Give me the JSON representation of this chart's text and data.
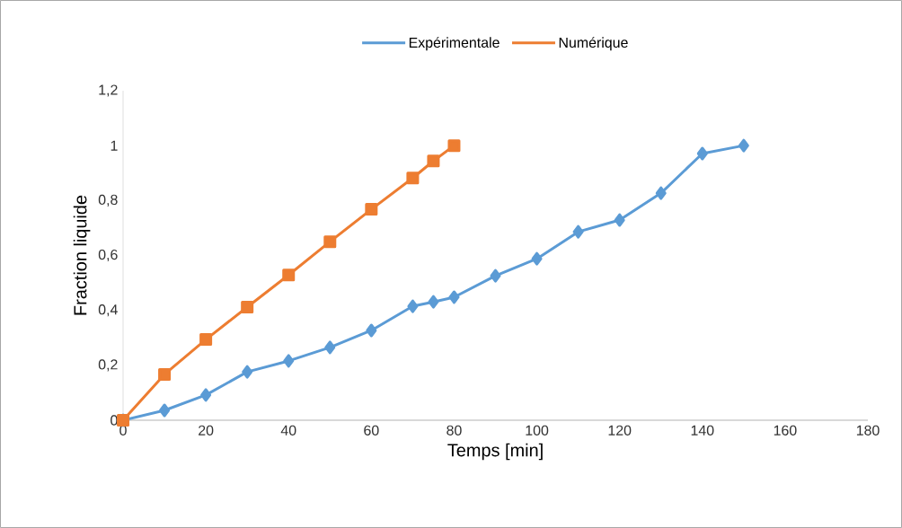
{
  "chart_data": {
    "type": "line",
    "xlabel": "Temps [min]",
    "ylabel": "Fraction liquide",
    "xlim": [
      0,
      180
    ],
    "xticks": [
      0,
      20,
      40,
      60,
      80,
      100,
      120,
      140,
      160,
      180
    ],
    "ylim": [
      0,
      1.2
    ],
    "yticks": [
      {
        "value": 0,
        "label": "0"
      },
      {
        "value": 0.2,
        "label": "0,2"
      },
      {
        "value": 0.4,
        "label": "0,4"
      },
      {
        "value": 0.6,
        "label": "0,6"
      },
      {
        "value": 0.8,
        "label": "0,8"
      },
      {
        "value": 1,
        "label": "1"
      },
      {
        "value": 1.2,
        "label": "1,2"
      }
    ],
    "legend": "top",
    "line_style": "solid",
    "series": [
      {
        "name": "Expérimentale",
        "color": "#5b9bd5",
        "marker": "diamond",
        "x": [
          0,
          10,
          20,
          30,
          40,
          50,
          60,
          70,
          75,
          80,
          90,
          100,
          110,
          120,
          130,
          140,
          150
        ],
        "values": [
          0,
          0.036,
          0.092,
          0.176,
          0.216,
          0.265,
          0.327,
          0.415,
          0.431,
          0.448,
          0.526,
          0.588,
          0.686,
          0.729,
          0.827,
          0.971,
          1.0
        ]
      },
      {
        "name": "Numérique",
        "color": "#ed7d31",
        "marker": "square",
        "x": [
          0,
          10,
          20,
          30,
          40,
          50,
          60,
          70,
          75,
          80
        ],
        "values": [
          0,
          0.167,
          0.294,
          0.412,
          0.529,
          0.65,
          0.768,
          0.882,
          0.944,
          1.0
        ]
      }
    ]
  }
}
